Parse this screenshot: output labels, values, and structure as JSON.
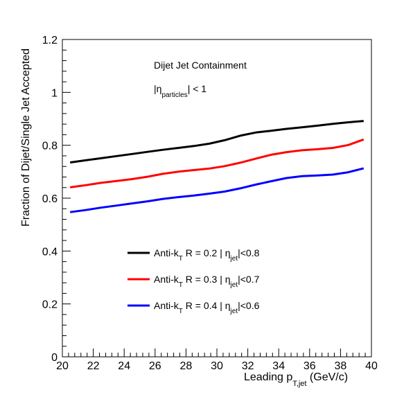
{
  "chart_data": {
    "type": "line",
    "title": "",
    "annotations": {
      "line1": "Dijet Jet Containment",
      "line2_main": "|η",
      "line2_sub": "particles",
      "line2_tail": "| < 1"
    },
    "xlabel": {
      "main": "Leading p",
      "sub": "T,jet",
      "tail": " (GeV/c)"
    },
    "ylabel": "Fraction of Dijet/Single Jet Accepted",
    "xlim": [
      20,
      40
    ],
    "ylim": [
      0,
      1.2
    ],
    "x_ticks": [
      "20",
      "22",
      "24",
      "26",
      "28",
      "30",
      "32",
      "34",
      "36",
      "38",
      "40"
    ],
    "y_ticks": [
      "0",
      "0.2",
      "0.4",
      "0.6",
      "0.8",
      "1",
      "1.2"
    ],
    "grid": false,
    "legend_position": "bottom-left",
    "series": [
      {
        "name_parts": [
          "Anti-k",
          "T",
          " R = 0.2 | η",
          "jet",
          "|<0.8"
        ],
        "color": "#000000",
        "x": [
          20.5,
          21.5,
          22.5,
          23.5,
          24.5,
          25.5,
          26.5,
          27.5,
          28.5,
          29.5,
          30.5,
          31.5,
          32.5,
          33.5,
          34.5,
          35.5,
          36.5,
          37.5,
          38.5,
          39.5
        ],
        "y": [
          0.735,
          0.743,
          0.751,
          0.759,
          0.767,
          0.775,
          0.783,
          0.79,
          0.797,
          0.806,
          0.819,
          0.836,
          0.848,
          0.855,
          0.862,
          0.868,
          0.874,
          0.881,
          0.887,
          0.892
        ]
      },
      {
        "name_parts": [
          "Anti-k",
          "T",
          " R = 0.3 | η",
          "jet",
          "|<0.7"
        ],
        "color": "#ff0000",
        "x": [
          20.5,
          21.5,
          22.5,
          23.5,
          24.5,
          25.5,
          26.5,
          27.5,
          28.5,
          29.5,
          30.5,
          31.5,
          32.5,
          33.5,
          34.5,
          35.5,
          36.5,
          37.5,
          38.5,
          39.5
        ],
        "y": [
          0.641,
          0.649,
          0.658,
          0.665,
          0.672,
          0.681,
          0.692,
          0.7,
          0.706,
          0.712,
          0.721,
          0.734,
          0.749,
          0.764,
          0.774,
          0.781,
          0.785,
          0.79,
          0.801,
          0.822
        ]
      },
      {
        "name_parts": [
          "Anti-k",
          "T",
          " R = 0.4 | η",
          "jet",
          "|<0.6"
        ],
        "color": "#0000ff",
        "x": [
          20.5,
          21.5,
          22.5,
          23.5,
          24.5,
          25.5,
          26.5,
          27.5,
          28.5,
          29.5,
          30.5,
          31.5,
          32.5,
          33.5,
          34.5,
          35.5,
          36.5,
          37.5,
          38.5,
          39.5
        ],
        "y": [
          0.547,
          0.555,
          0.564,
          0.572,
          0.58,
          0.588,
          0.597,
          0.604,
          0.61,
          0.617,
          0.625,
          0.637,
          0.651,
          0.664,
          0.676,
          0.683,
          0.686,
          0.689,
          0.698,
          0.713
        ]
      }
    ]
  }
}
